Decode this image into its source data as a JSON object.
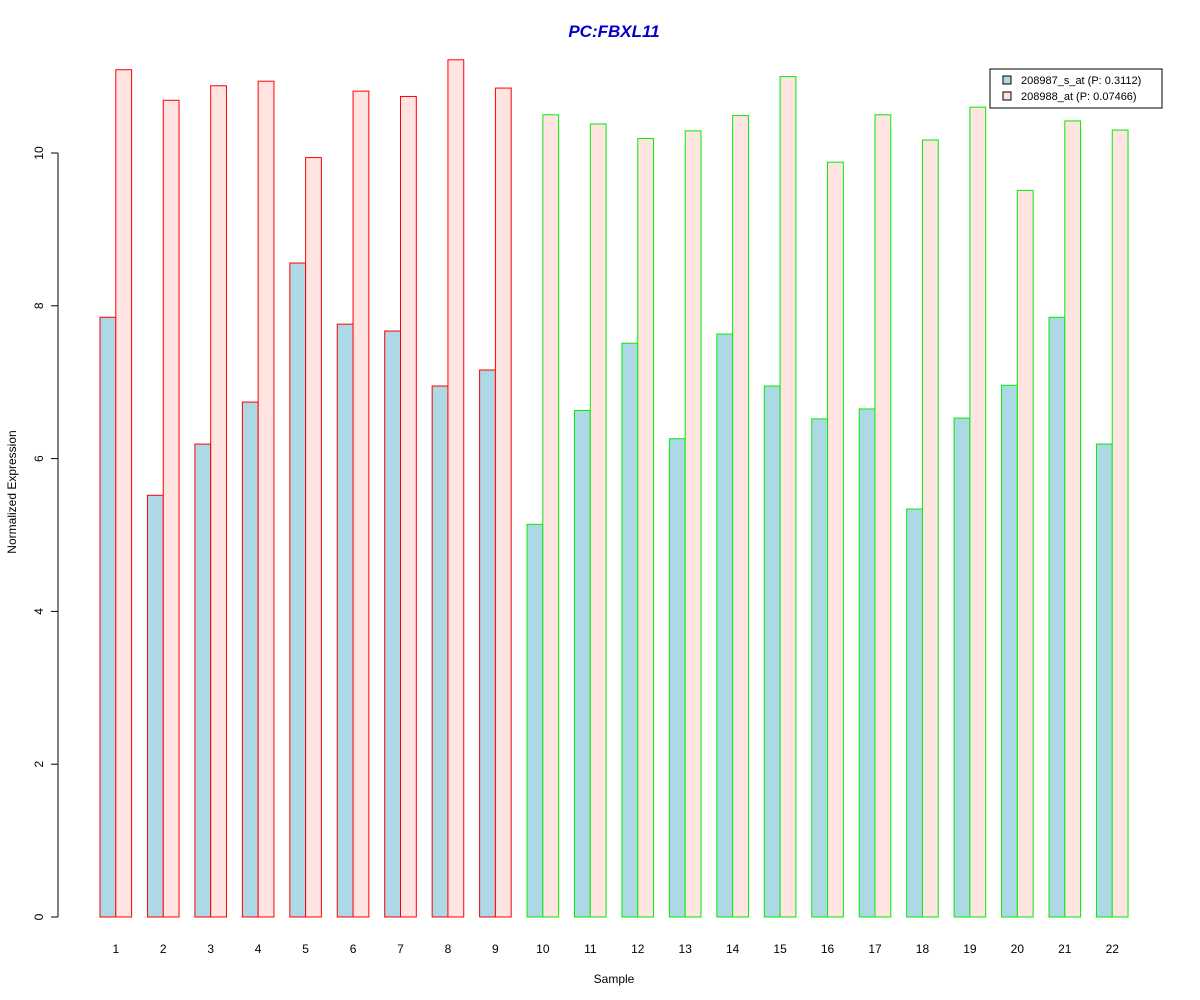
{
  "chart_data": {
    "type": "bar",
    "title": "PC:FBXL11",
    "xlabel": "Sample",
    "ylabel": "Normalized Expression",
    "ylim": [
      0,
      11.2
    ],
    "y_ticks": [
      "0",
      "2",
      "4",
      "6",
      "8",
      "10"
    ],
    "categories": [
      "1",
      "2",
      "3",
      "4",
      "5",
      "6",
      "7",
      "8",
      "9",
      "10",
      "11",
      "12",
      "13",
      "14",
      "15",
      "16",
      "17",
      "18",
      "19",
      "20",
      "21",
      "22"
    ],
    "series": [
      {
        "name": "208987_s_at (P: 0.3112)",
        "fill": "#add8e6",
        "values": [
          7.85,
          5.52,
          6.19,
          6.74,
          8.56,
          7.76,
          7.67,
          6.95,
          7.16,
          5.14,
          6.63,
          7.51,
          6.26,
          7.63,
          6.95,
          6.52,
          6.65,
          5.34,
          6.53,
          6.96,
          7.85,
          6.19
        ]
      },
      {
        "name": "208988_at (P: 0.07466)",
        "fill": "#ffe4e1",
        "values": [
          11.09,
          10.69,
          10.88,
          10.94,
          9.94,
          10.81,
          10.74,
          11.22,
          10.85,
          10.5,
          10.38,
          10.19,
          10.29,
          10.49,
          11.0,
          9.88,
          10.5,
          10.17,
          10.6,
          9.51,
          10.42,
          10.3
        ]
      }
    ],
    "group_colors": {
      "1-9": "#ff0000",
      "10-22": "#00ee00"
    },
    "legend_position": "top-right",
    "grid": false
  }
}
